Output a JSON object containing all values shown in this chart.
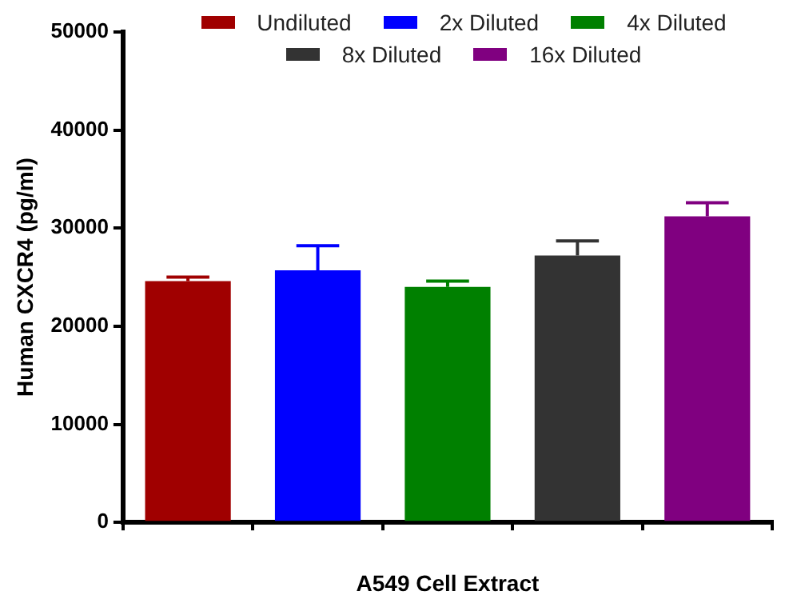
{
  "chart_data": {
    "type": "bar",
    "xlabel": "A549 Cell Extract",
    "ylabel": "Human CXCR4 (pg/ml)",
    "categories": [
      null,
      null,
      null,
      null,
      null
    ],
    "series": [
      {
        "name": "Undiluted",
        "color": "#a00000",
        "values": [
          24600,
          null,
          null,
          null,
          null
        ],
        "errors": [
          400,
          null,
          null,
          null,
          null
        ]
      },
      {
        "name": "2x Diluted",
        "color": "#0000ff",
        "values": [
          null,
          25700,
          null,
          null,
          null
        ],
        "errors": [
          null,
          2500,
          null,
          null,
          null
        ]
      },
      {
        "name": "4x Diluted",
        "color": "#008000",
        "values": [
          null,
          null,
          24000,
          null,
          null
        ],
        "errors": [
          null,
          null,
          600,
          null,
          null
        ]
      },
      {
        "name": "8x Diluted",
        "color": "#333333",
        "values": [
          null,
          null,
          null,
          27200,
          null
        ],
        "errors": [
          null,
          null,
          null,
          1500,
          null
        ]
      },
      {
        "name": "16x Diluted",
        "color": "#800080",
        "values": [
          null,
          null,
          null,
          null,
          31200
        ],
        "errors": [
          null,
          null,
          null,
          null,
          1400
        ]
      }
    ],
    "ylim": [
      0,
      50000
    ],
    "yticks": [
      0,
      10000,
      20000,
      30000,
      40000,
      50000
    ],
    "grid": false,
    "legend": "top"
  }
}
